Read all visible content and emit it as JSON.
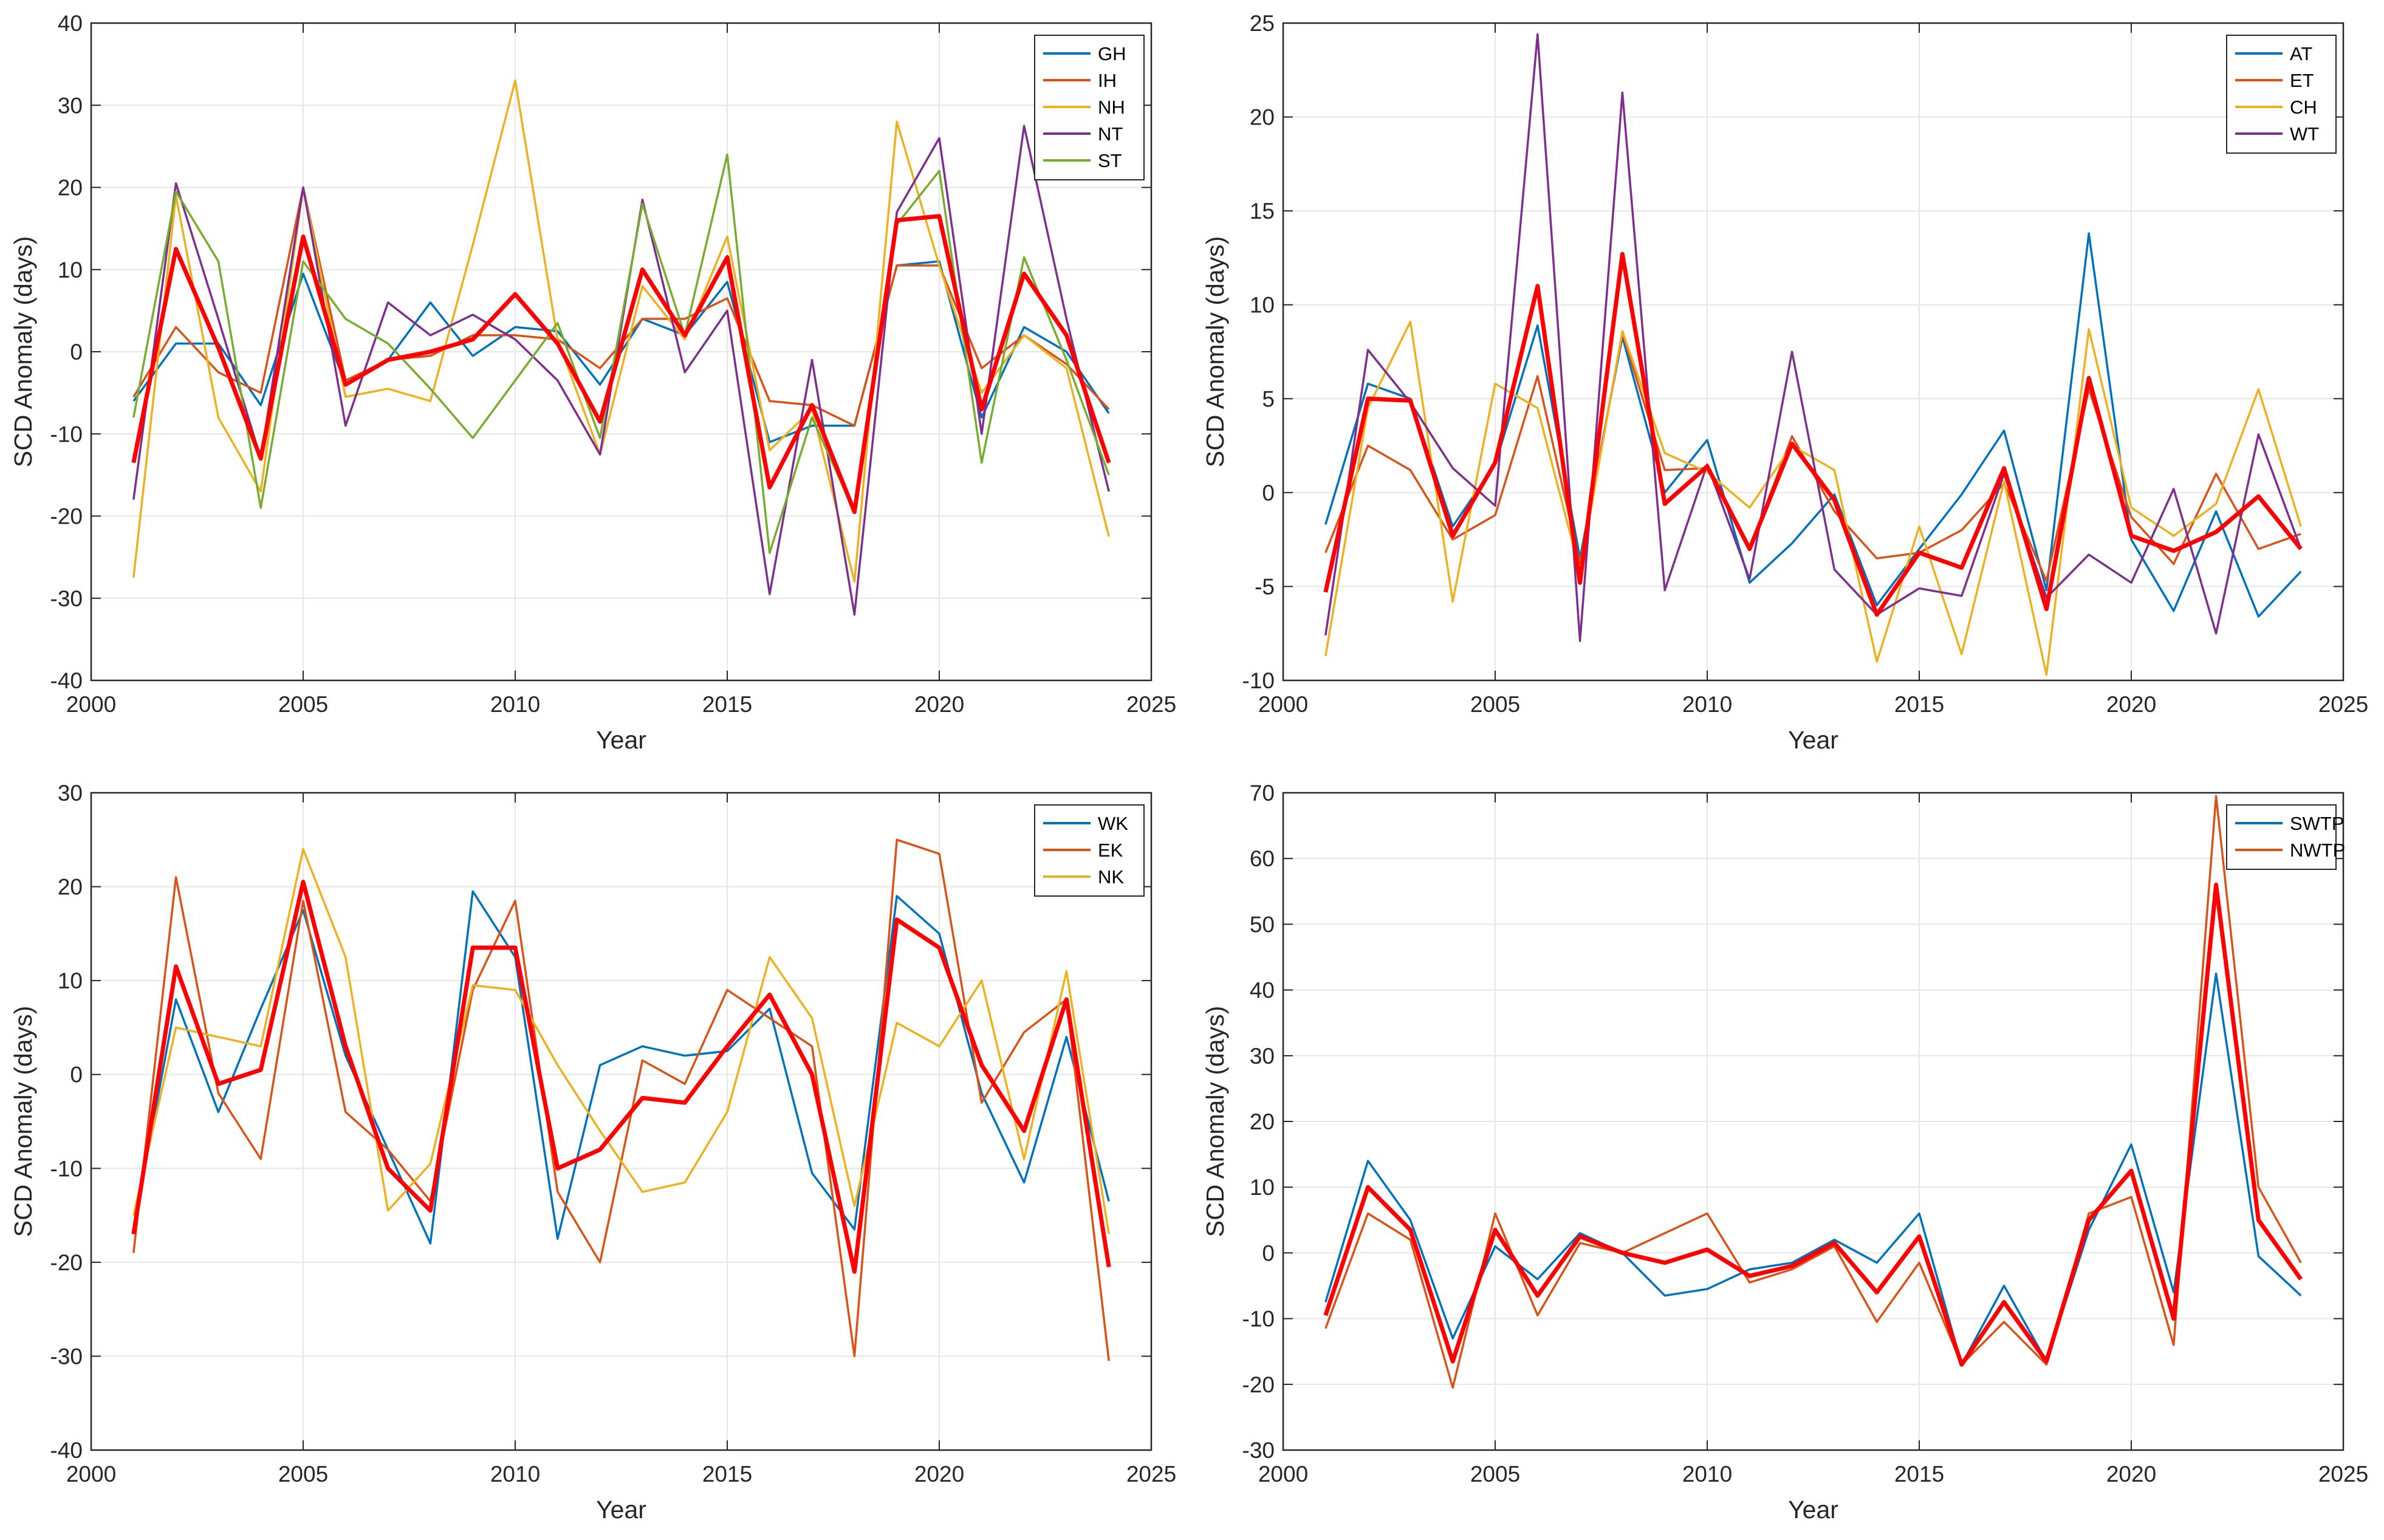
{
  "chart_data": [
    {
      "type": "line",
      "xlabel": "Year",
      "ylabel": "SCD Anomaly (days)",
      "xlim": [
        2000,
        2025
      ],
      "ylim": [
        -40,
        40
      ],
      "xticks": [
        2000,
        2005,
        2010,
        2015,
        2020,
        2025
      ],
      "yticks": [
        -40,
        -30,
        -20,
        -10,
        0,
        10,
        20,
        30,
        40
      ],
      "grid": true,
      "legend_position": "top-right",
      "x": [
        2001,
        2002,
        2003,
        2004,
        2005,
        2006,
        2007,
        2008,
        2009,
        2010,
        2011,
        2012,
        2013,
        2014,
        2015,
        2016,
        2017,
        2018,
        2019,
        2020,
        2021,
        2022,
        2023,
        2024
      ],
      "series": [
        {
          "name": "GH",
          "color": "#0072BD",
          "values": [
            -6,
            1,
            1,
            -6.5,
            9.5,
            -4,
            -1,
            6,
            -0.5,
            3,
            2.5,
            -4,
            4,
            2,
            8.5,
            -11,
            -9,
            -9,
            10.5,
            11,
            -8,
            3,
            0,
            -7.5
          ]
        },
        {
          "name": "IH",
          "color": "#D95319",
          "values": [
            -5.5,
            3,
            -2.5,
            -5,
            20,
            -3.5,
            -1,
            -0.5,
            2,
            2,
            1.5,
            -2,
            4,
            4,
            6.5,
            -6,
            -6.5,
            -9,
            10.5,
            10.5,
            -2,
            2,
            -1.5,
            -7
          ]
        },
        {
          "name": "NH",
          "color": "#EDB120",
          "values": [
            -27.5,
            19,
            -8,
            -17,
            20,
            -5.5,
            -4.5,
            -6,
            13,
            33,
            1.5,
            -12.5,
            8,
            1.5,
            14,
            -12,
            -7,
            -28,
            28,
            10.5,
            -5,
            2,
            -2,
            -22.5
          ]
        },
        {
          "name": "NT",
          "color": "#7E2F8E",
          "values": [
            -18,
            20.5,
            4,
            -13,
            20,
            -9,
            6,
            2,
            4.5,
            1.5,
            -3.5,
            -12.5,
            18.5,
            -2.5,
            5,
            -29.5,
            -1,
            -32,
            17,
            26,
            -10,
            27.5,
            4,
            -17
          ]
        },
        {
          "name": "ST",
          "color": "#77AC30",
          "values": [
            -8,
            19.5,
            11,
            -19,
            11,
            4,
            1,
            -4.5,
            -10.5,
            -3.5,
            3.5,
            -10.5,
            18,
            2,
            24,
            -24.5,
            -8,
            -19.5,
            15.5,
            22,
            -13.5,
            11.5,
            -1,
            -15
          ]
        },
        {
          "name": "",
          "color": "#FF0000",
          "thick": true,
          "values": [
            -13.5,
            12.5,
            0.5,
            -13,
            14,
            -4,
            -1,
            0,
            1.5,
            7,
            1,
            -8.5,
            10,
            2,
            11.5,
            -16.5,
            -6.5,
            -19.5,
            16,
            16.5,
            -7,
            9.5,
            2,
            -13.5
          ]
        }
      ]
    },
    {
      "type": "line",
      "xlabel": "Year",
      "ylabel": "SCD Anomaly (days)",
      "xlim": [
        2000,
        2025
      ],
      "ylim": [
        -10,
        25
      ],
      "xticks": [
        2000,
        2005,
        2010,
        2015,
        2020,
        2025
      ],
      "yticks": [
        -10,
        -5,
        0,
        5,
        10,
        15,
        20,
        25
      ],
      "grid": true,
      "legend_position": "top-right",
      "x": [
        2001,
        2002,
        2003,
        2004,
        2005,
        2006,
        2007,
        2008,
        2009,
        2010,
        2011,
        2012,
        2013,
        2014,
        2015,
        2016,
        2017,
        2018,
        2019,
        2020,
        2021,
        2022,
        2023,
        2024
      ],
      "series": [
        {
          "name": "AT",
          "color": "#0072BD",
          "values": [
            -1.7,
            5.8,
            5,
            -1.8,
            1.5,
            8.9,
            -3.5,
            8.3,
            0,
            2.8,
            -4.8,
            -2.7,
            -0.1,
            -6,
            -3,
            -0.1,
            3.3,
            -5.2,
            13.8,
            -2.5,
            -6.3,
            -1,
            -6.6,
            -4.2
          ]
        },
        {
          "name": "ET",
          "color": "#D95319",
          "values": [
            -3.2,
            2.5,
            1.2,
            -2.5,
            -1.2,
            6.2,
            -3.8,
            8.5,
            1.2,
            1.3,
            -3,
            3,
            -1,
            -3.5,
            -3.2,
            -2,
            0.5,
            -4.7,
            5.5,
            -1.3,
            -3.8,
            1,
            -3,
            -2.2
          ]
        },
        {
          "name": "CH",
          "color": "#EDB120",
          "values": [
            -8.7,
            4.5,
            9.1,
            -5.8,
            5.8,
            4.5,
            -4.2,
            8.6,
            2.1,
            1.1,
            -0.8,
            2.5,
            1.2,
            -9,
            -1.8,
            -8.6,
            0.6,
            -9.7,
            8.7,
            -0.8,
            -2.3,
            -0.6,
            5.5,
            -1.8
          ]
        },
        {
          "name": "WT",
          "color": "#7E2F8E",
          "values": [
            -7.6,
            7.6,
            4.8,
            1.3,
            -0.7,
            24.4,
            -7.9,
            21.3,
            -5.2,
            1.5,
            -4.6,
            7.5,
            -4.1,
            -6.5,
            -5.1,
            -5.5,
            1,
            -5.6,
            -3.3,
            -4.8,
            0.2,
            -7.5,
            3.1,
            -3
          ]
        },
        {
          "name": "",
          "color": "#FF0000",
          "thick": true,
          "values": [
            -5.3,
            5,
            4.9,
            -2.3,
            1.6,
            11,
            -4.8,
            12.7,
            -0.6,
            1.4,
            -3,
            2.6,
            -0.4,
            -6.5,
            -3.2,
            -4,
            1.3,
            -6.2,
            6.1,
            -2.3,
            -3.1,
            -2.1,
            -0.2,
            -3
          ]
        }
      ]
    },
    {
      "type": "line",
      "xlabel": "Year",
      "ylabel": "SCD Anomaly (days)",
      "xlim": [
        2000,
        2025
      ],
      "ylim": [
        -40,
        30
      ],
      "xticks": [
        2000,
        2005,
        2010,
        2015,
        2020,
        2025
      ],
      "yticks": [
        -40,
        -30,
        -20,
        -10,
        0,
        10,
        20,
        30
      ],
      "grid": true,
      "legend_position": "top-right",
      "x": [
        2001,
        2002,
        2003,
        2004,
        2005,
        2006,
        2007,
        2008,
        2009,
        2010,
        2011,
        2012,
        2013,
        2014,
        2015,
        2016,
        2017,
        2018,
        2019,
        2020,
        2021,
        2022,
        2023,
        2024
      ],
      "series": [
        {
          "name": "WK",
          "color": "#0072BD",
          "values": [
            -16.5,
            8,
            -4,
            7,
            17.5,
            2,
            -8,
            -18,
            19.5,
            12.5,
            -17.5,
            1,
            3,
            2,
            2.5,
            7,
            -10.5,
            -16.5,
            19,
            15,
            -2,
            -11.5,
            4,
            -13.5
          ]
        },
        {
          "name": "EK",
          "color": "#D95319",
          "values": [
            -19,
            21,
            -2,
            -9,
            18.5,
            -4,
            -8,
            -13.5,
            9,
            18.5,
            -12.5,
            -20,
            1.5,
            -1,
            9,
            6,
            3,
            -30,
            25,
            23.5,
            -3,
            4.5,
            8,
            -30.5
          ]
        },
        {
          "name": "NK",
          "color": "#EDB120",
          "values": [
            -15,
            5,
            4,
            3,
            24,
            12.5,
            -14.5,
            -9.5,
            9.5,
            9,
            1,
            -6,
            -12.5,
            -11.5,
            -4,
            12.5,
            6,
            -14,
            5.5,
            3,
            10,
            -9,
            11,
            -17
          ]
        },
        {
          "name": "",
          "color": "#FF0000",
          "thick": true,
          "values": [
            -17,
            11.5,
            -1,
            0.5,
            20.5,
            3,
            -10,
            -14.5,
            13.5,
            13.5,
            -10,
            -8,
            -2.5,
            -3,
            3,
            8.5,
            0,
            -21,
            16.5,
            13.5,
            1,
            -6,
            8,
            -20.5
          ]
        }
      ]
    },
    {
      "type": "line",
      "xlabel": "Year",
      "ylabel": "SCD Anomaly (days)",
      "xlim": [
        2000,
        2025
      ],
      "ylim": [
        -30,
        70
      ],
      "xticks": [
        2000,
        2005,
        2010,
        2015,
        2020,
        2025
      ],
      "yticks": [
        -30,
        -20,
        -10,
        0,
        10,
        20,
        30,
        40,
        50,
        60,
        70
      ],
      "grid": true,
      "legend_position": "top-right",
      "x": [
        2001,
        2002,
        2003,
        2004,
        2005,
        2006,
        2007,
        2008,
        2009,
        2010,
        2011,
        2012,
        2013,
        2014,
        2015,
        2016,
        2017,
        2018,
        2019,
        2020,
        2021,
        2022,
        2023,
        2024
      ],
      "series": [
        {
          "name": "SWTP",
          "color": "#0072BD",
          "values": [
            -7.5,
            14,
            5,
            -13,
            1,
            -4,
            3,
            0,
            -6.5,
            -5.5,
            -2.5,
            -1.5,
            2,
            -1.5,
            6,
            -17,
            -5,
            -16.5,
            3.5,
            16.5,
            -6,
            42.5,
            -0.5,
            -6.5
          ]
        },
        {
          "name": "NWTP",
          "color": "#D95319",
          "values": [
            -11.5,
            6,
            2,
            -20.5,
            6,
            -9.5,
            1.5,
            0,
            3,
            6,
            -4.5,
            -2.5,
            1,
            -10.5,
            -1.5,
            -17,
            -10.5,
            -17,
            6,
            8.5,
            -14,
            69.5,
            10,
            -1.5
          ]
        },
        {
          "name": "",
          "color": "#FF0000",
          "thick": true,
          "values": [
            -9.5,
            10,
            3.5,
            -16.5,
            3.5,
            -6.5,
            2.5,
            0,
            -1.5,
            0.5,
            -3.5,
            -2,
            1.5,
            -6,
            2.5,
            -17,
            -7.5,
            -16.5,
            5,
            12.5,
            -10,
            56,
            5,
            -4
          ]
        }
      ]
    }
  ]
}
